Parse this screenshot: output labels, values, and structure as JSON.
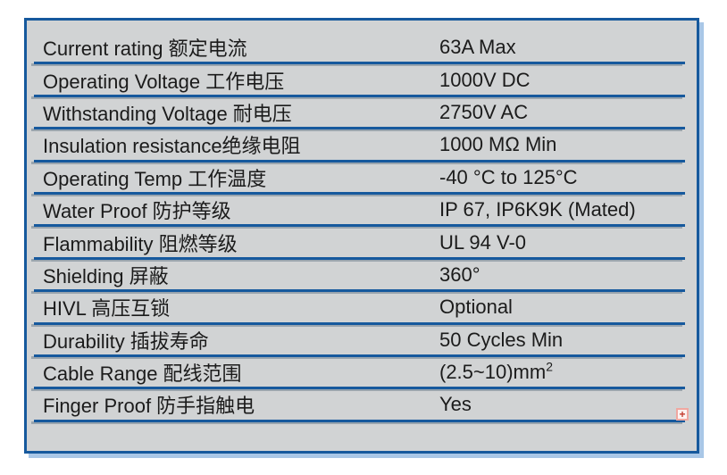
{
  "table": {
    "name": "connector-specification-table",
    "rows": [
      {
        "label": "Current rating 额定电流",
        "value": "63A Max"
      },
      {
        "label": "Operating Voltage 工作电压",
        "value": "1000V DC"
      },
      {
        "label": "Withstanding Voltage 耐电压",
        "value": "2750V AC"
      },
      {
        "label": "Insulation resistance绝缘电阻",
        "value": "1000 MΩ Min"
      },
      {
        "label": "Operating Temp 工作温度",
        "value": "-40 °C to 125°C"
      },
      {
        "label": "Water Proof 防护等级",
        "value": "IP 67, IP6K9K (Mated)"
      },
      {
        "label": "Flammability 阻燃等级",
        "value": "UL 94 V-0"
      },
      {
        "label": "Shielding 屏蔽",
        "value": "360°"
      },
      {
        "label": "HIVL 高压互锁",
        "value": "Optional"
      },
      {
        "label": "Durability 插拔寿命",
        "value": "50 Cycles Min"
      },
      {
        "label": "Cable Range 配线范围",
        "value": "(2.5~10)mm",
        "value_superscript": "2"
      },
      {
        "label": "Finger Proof 防手指触电",
        "value": "Yes"
      }
    ],
    "colors": {
      "table_fill": "#d1d3d4",
      "border_blue": "#16599d",
      "shadow_light_blue": "#a9c7e7",
      "separator_shadow_gray": "#9aa5ae",
      "text": "#1b1b1b",
      "anchor_red": "#c23b2e",
      "anchor_border_pink": "#f0a8a1"
    }
  },
  "icons": {
    "anchor_glyph": "+"
  }
}
